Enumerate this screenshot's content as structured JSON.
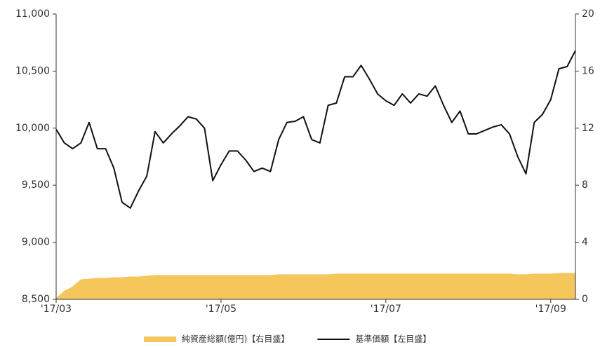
{
  "chart_data": {
    "type": "line",
    "categories": [
      "'17/03",
      null,
      null,
      null,
      null,
      null,
      null,
      null,
      null,
      null,
      null,
      null,
      null,
      null,
      null,
      null,
      null,
      null,
      null,
      null,
      "'17/05",
      null,
      null,
      null,
      null,
      null,
      null,
      null,
      null,
      null,
      null,
      null,
      null,
      null,
      null,
      null,
      null,
      null,
      null,
      null,
      "'17/07",
      null,
      null,
      null,
      null,
      null,
      null,
      null,
      null,
      null,
      null,
      null,
      null,
      null,
      null,
      null,
      null,
      null,
      null,
      null,
      "'17/09",
      null,
      null,
      null
    ],
    "series": [
      {
        "name": "純資産総額(億円)【右目盛】",
        "type": "area",
        "axis": "y2",
        "color": "#f5c65a",
        "values": [
          0.1,
          0.6,
          0.9,
          1.4,
          1.45,
          1.5,
          1.5,
          1.55,
          1.55,
          1.6,
          1.6,
          1.65,
          1.7,
          1.7,
          1.7,
          1.7,
          1.7,
          1.7,
          1.7,
          1.7,
          1.7,
          1.7,
          1.7,
          1.7,
          1.7,
          1.7,
          1.7,
          1.75,
          1.75,
          1.75,
          1.75,
          1.75,
          1.75,
          1.75,
          1.8,
          1.8,
          1.8,
          1.8,
          1.8,
          1.8,
          1.8,
          1.8,
          1.8,
          1.8,
          1.8,
          1.8,
          1.8,
          1.8,
          1.8,
          1.8,
          1.8,
          1.8,
          1.8,
          1.8,
          1.8,
          1.8,
          1.75,
          1.75,
          1.8,
          1.8,
          1.8,
          1.85,
          1.85,
          1.85
        ]
      },
      {
        "name": "基準価額【左目盛】",
        "type": "line",
        "axis": "y",
        "color": "#111111",
        "values": [
          9990,
          9870,
          9820,
          9870,
          10050,
          9820,
          9820,
          9650,
          9350,
          9300,
          9450,
          9580,
          9970,
          9870,
          9950,
          10020,
          10100,
          10080,
          10000,
          9540,
          9680,
          9800,
          9800,
          9720,
          9620,
          9650,
          9620,
          9900,
          10050,
          10060,
          10100,
          9900,
          9870,
          10200,
          10220,
          10450,
          10450,
          10550,
          10430,
          10300,
          10240,
          10200,
          10300,
          10220,
          10300,
          10280,
          10370,
          10200,
          10050,
          10150,
          9950,
          9950,
          9980,
          10010,
          10030,
          9950,
          9750,
          9600,
          10050,
          10120,
          10250,
          10520,
          10540,
          10680
        ]
      }
    ],
    "ylim": [
      8500,
      11000
    ],
    "yticks": [
      {
        "value": 8500,
        "label": "8,500"
      },
      {
        "value": 9000,
        "label": "9,000"
      },
      {
        "value": 9500,
        "label": "9,500"
      },
      {
        "value": 10000,
        "label": "10,000"
      },
      {
        "value": 10500,
        "label": "10,500"
      },
      {
        "value": 11000,
        "label": "11,000"
      }
    ],
    "y2lim": [
      0,
      20
    ],
    "y2ticks": [
      0,
      4,
      8,
      12,
      16,
      20
    ],
    "grid": false
  }
}
